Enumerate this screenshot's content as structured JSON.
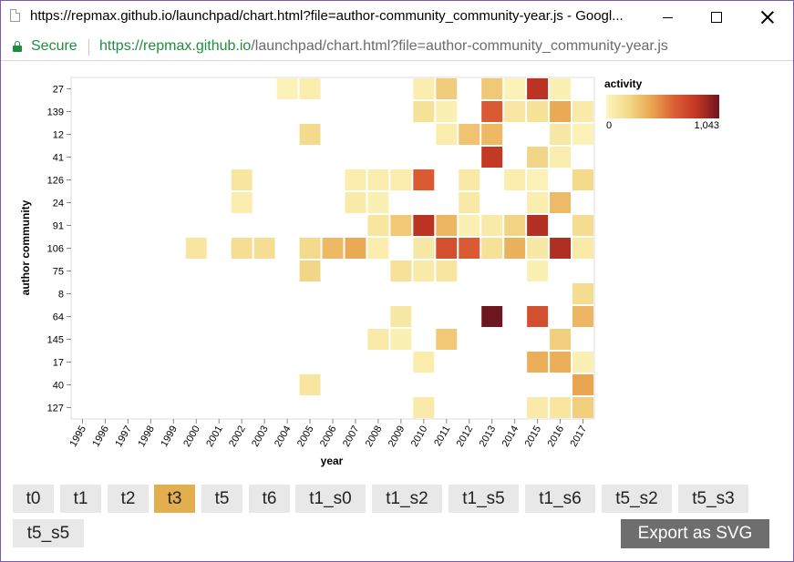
{
  "window": {
    "title": "https://repmax.github.io/launchpad/chart.html?file=author-community_community-year.js - Googl...",
    "secure_label": "Secure",
    "url_scheme": "https://",
    "url_host": "repmax.github.io",
    "url_path": "/launchpad/chart.html?file=author-community_community-year.js",
    "icons": [
      "document-icon",
      "minimize-icon",
      "maximize-icon",
      "close-icon",
      "lock-icon"
    ]
  },
  "chart_data": {
    "type": "heatmap",
    "xlabel": "year",
    "ylabel": "author community",
    "legend_title": "activity",
    "legend_min_label": "0",
    "legend_max_label": "1,043",
    "value_range": [
      0,
      1043
    ],
    "legend_position": "top-right",
    "color_scale": [
      "#fdf5bd",
      "#f3d98a",
      "#e9a650",
      "#dc5f35",
      "#c13623",
      "#6e1620"
    ],
    "x": [
      "1995",
      "1996",
      "1997",
      "1998",
      "1999",
      "2000",
      "2001",
      "2002",
      "2003",
      "2004",
      "2005",
      "2006",
      "2007",
      "2008",
      "2009",
      "2010",
      "2011",
      "2012",
      "2013",
      "2014",
      "2015",
      "2016",
      "2017"
    ],
    "y": [
      "27",
      "139",
      "12",
      "41",
      "126",
      "24",
      "91",
      "106",
      "75",
      "8",
      "64",
      "145",
      "17",
      "40",
      "127"
    ],
    "cells": [
      {
        "x": "2004",
        "y": "27",
        "v": 30
      },
      {
        "x": "2005",
        "y": "27",
        "v": 60
      },
      {
        "x": "2010",
        "y": "27",
        "v": 60
      },
      {
        "x": "2011",
        "y": "27",
        "v": 260
      },
      {
        "x": "2013",
        "y": "27",
        "v": 280
      },
      {
        "x": "2014",
        "y": "27",
        "v": 30
      },
      {
        "x": "2015",
        "y": "27",
        "v": 850
      },
      {
        "x": "2016",
        "y": "27",
        "v": 40
      },
      {
        "x": "2010",
        "y": "139",
        "v": 150
      },
      {
        "x": "2011",
        "y": "139",
        "v": 40
      },
      {
        "x": "2013",
        "y": "139",
        "v": 650
      },
      {
        "x": "2014",
        "y": "139",
        "v": 110
      },
      {
        "x": "2015",
        "y": "139",
        "v": 150
      },
      {
        "x": "2016",
        "y": "139",
        "v": 400
      },
      {
        "x": "2017",
        "y": "139",
        "v": 80
      },
      {
        "x": "2005",
        "y": "12",
        "v": 200
      },
      {
        "x": "2011",
        "y": "12",
        "v": 60
      },
      {
        "x": "2012",
        "y": "12",
        "v": 300
      },
      {
        "x": "2013",
        "y": "12",
        "v": 340
      },
      {
        "x": "2016",
        "y": "12",
        "v": 100
      },
      {
        "x": "2017",
        "y": "12",
        "v": 30
      },
      {
        "x": "2013",
        "y": "41",
        "v": 820
      },
      {
        "x": "2015",
        "y": "41",
        "v": 220
      },
      {
        "x": "2016",
        "y": "41",
        "v": 60
      },
      {
        "x": "2002",
        "y": "126",
        "v": 120
      },
      {
        "x": "2007",
        "y": "126",
        "v": 60
      },
      {
        "x": "2008",
        "y": "126",
        "v": 60
      },
      {
        "x": "2009",
        "y": "126",
        "v": 60
      },
      {
        "x": "2010",
        "y": "126",
        "v": 650
      },
      {
        "x": "2012",
        "y": "126",
        "v": 90
      },
      {
        "x": "2014",
        "y": "126",
        "v": 60
      },
      {
        "x": "2015",
        "y": "126",
        "v": 30
      },
      {
        "x": "2017",
        "y": "126",
        "v": 200
      },
      {
        "x": "2002",
        "y": "24",
        "v": 60
      },
      {
        "x": "2007",
        "y": "24",
        "v": 80
      },
      {
        "x": "2008",
        "y": "24",
        "v": 40
      },
      {
        "x": "2012",
        "y": "24",
        "v": 90
      },
      {
        "x": "2015",
        "y": "24",
        "v": 60
      },
      {
        "x": "2016",
        "y": "24",
        "v": 330
      },
      {
        "x": "2008",
        "y": "91",
        "v": 120
      },
      {
        "x": "2009",
        "y": "91",
        "v": 280
      },
      {
        "x": "2010",
        "y": "91",
        "v": 850
      },
      {
        "x": "2011",
        "y": "91",
        "v": 350
      },
      {
        "x": "2012",
        "y": "91",
        "v": 40
      },
      {
        "x": "2013",
        "y": "91",
        "v": 80
      },
      {
        "x": "2014",
        "y": "91",
        "v": 230
      },
      {
        "x": "2015",
        "y": "91",
        "v": 870
      },
      {
        "x": "2017",
        "y": "91",
        "v": 180
      },
      {
        "x": "2000",
        "y": "106",
        "v": 120
      },
      {
        "x": "2002",
        "y": "106",
        "v": 170
      },
      {
        "x": "2003",
        "y": "106",
        "v": 170
      },
      {
        "x": "2005",
        "y": "106",
        "v": 200
      },
      {
        "x": "2006",
        "y": "106",
        "v": 340
      },
      {
        "x": "2007",
        "y": "106",
        "v": 400
      },
      {
        "x": "2008",
        "y": "106",
        "v": 60
      },
      {
        "x": "2010",
        "y": "106",
        "v": 100
      },
      {
        "x": "2011",
        "y": "106",
        "v": 700
      },
      {
        "x": "2012",
        "y": "106",
        "v": 650
      },
      {
        "x": "2013",
        "y": "106",
        "v": 150
      },
      {
        "x": "2014",
        "y": "106",
        "v": 370
      },
      {
        "x": "2015",
        "y": "106",
        "v": 100
      },
      {
        "x": "2016",
        "y": "106",
        "v": 880
      },
      {
        "x": "2017",
        "y": "106",
        "v": 80
      },
      {
        "x": "2005",
        "y": "75",
        "v": 220
      },
      {
        "x": "2009",
        "y": "75",
        "v": 150
      },
      {
        "x": "2010",
        "y": "75",
        "v": 80
      },
      {
        "x": "2011",
        "y": "75",
        "v": 120
      },
      {
        "x": "2015",
        "y": "75",
        "v": 40
      },
      {
        "x": "2017",
        "y": "8",
        "v": 180
      },
      {
        "x": "2009",
        "y": "64",
        "v": 100
      },
      {
        "x": "2013",
        "y": "64",
        "v": 1043
      },
      {
        "x": "2015",
        "y": "64",
        "v": 700
      },
      {
        "x": "2017",
        "y": "64",
        "v": 350
      },
      {
        "x": "2008",
        "y": "145",
        "v": 80
      },
      {
        "x": "2009",
        "y": "145",
        "v": 40
      },
      {
        "x": "2011",
        "y": "145",
        "v": 280
      },
      {
        "x": "2016",
        "y": "145",
        "v": 250
      },
      {
        "x": "2010",
        "y": "17",
        "v": 60
      },
      {
        "x": "2015",
        "y": "17",
        "v": 380
      },
      {
        "x": "2016",
        "y": "17",
        "v": 380
      },
      {
        "x": "2017",
        "y": "17",
        "v": 40
      },
      {
        "x": "2005",
        "y": "40",
        "v": 120
      },
      {
        "x": "2017",
        "y": "40",
        "v": 420
      },
      {
        "x": "2010",
        "y": "127",
        "v": 80
      },
      {
        "x": "2015",
        "y": "127",
        "v": 80
      },
      {
        "x": "2016",
        "y": "127",
        "v": 120
      },
      {
        "x": "2017",
        "y": "127",
        "v": 250
      }
    ]
  },
  "buttons": {
    "row1": [
      {
        "label": "t0",
        "active": false
      },
      {
        "label": "t1",
        "active": false
      },
      {
        "label": "t2",
        "active": false
      },
      {
        "label": "t3",
        "active": true
      },
      {
        "label": "t5",
        "active": false
      },
      {
        "label": "t6",
        "active": false
      },
      {
        "label": "t1_s0",
        "active": false
      },
      {
        "label": "t1_s2",
        "active": false
      },
      {
        "label": "t1_s5",
        "active": false
      },
      {
        "label": "t1_s6",
        "active": false
      },
      {
        "label": "t5_s2",
        "active": false
      },
      {
        "label": "t5_s3",
        "active": false
      }
    ],
    "row2": [
      {
        "label": "t5_s5",
        "active": false
      }
    ],
    "export_label": "Export as SVG",
    "active_color": "#e3ae4d"
  }
}
